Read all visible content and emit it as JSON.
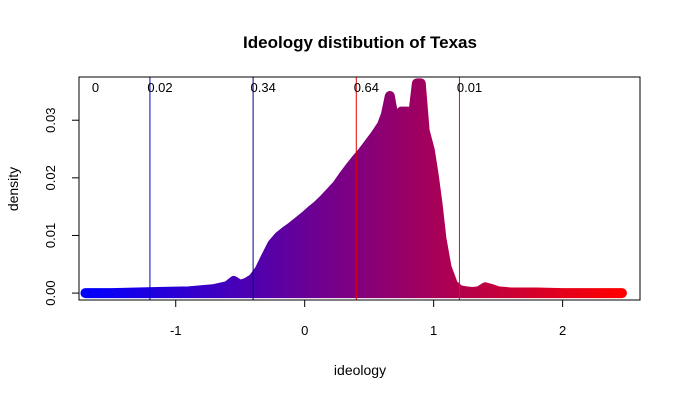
{
  "chart_data": {
    "type": "area",
    "title": "Ideology distibution of Texas",
    "xlabel": "ideology",
    "ylabel": "density",
    "xlim": [
      -1.75,
      2.6
    ],
    "ylim": [
      -0.0012,
      0.0375
    ],
    "x_ticks": [
      -1,
      0,
      1,
      2
    ],
    "x_tick_labels": [
      "-1",
      "0",
      "1",
      "2"
    ],
    "y_ticks": [
      0.0,
      0.01,
      0.02,
      0.03
    ],
    "y_tick_labels": [
      "0.00",
      "0.01",
      "0.02",
      "0.03"
    ],
    "grid": false,
    "gradient_colors": [
      "#0000ff",
      "#ff0000"
    ],
    "cutoff_lines": [
      {
        "x": -1.2,
        "color": "#0000cc"
      },
      {
        "x": -0.4,
        "color": "#00008b"
      },
      {
        "x": 0.4,
        "color": "#e00000"
      },
      {
        "x": 1.2,
        "color": "#ff0000"
      }
    ],
    "annotations": [
      {
        "x": -1.65,
        "text": "0"
      },
      {
        "x": -1.22,
        "text": "0.02"
      },
      {
        "x": -0.42,
        "text": "0.34"
      },
      {
        "x": 0.38,
        "text": "0.64"
      },
      {
        "x": 1.18,
        "text": "0.01"
      }
    ],
    "series": [
      {
        "x": [
          -1.7,
          -1.5,
          -1.3,
          -1.1,
          -0.9,
          -0.7,
          -0.6,
          -0.55,
          -0.5,
          -0.45,
          -0.4,
          -0.35,
          -0.3,
          -0.25,
          -0.2,
          -0.15,
          -0.1,
          -0.05,
          0.0,
          0.05,
          0.1,
          0.15,
          0.2,
          0.25,
          0.3,
          0.35,
          0.4,
          0.45,
          0.5,
          0.55,
          0.6,
          0.63,
          0.66,
          0.7,
          0.75,
          0.8,
          0.83,
          0.87,
          0.9,
          0.93,
          0.97,
          1.0,
          1.03,
          1.06,
          1.1,
          1.15,
          1.2,
          1.25,
          1.3,
          1.35,
          1.4,
          1.45,
          1.5,
          1.6,
          1.8,
          2.0,
          2.2,
          2.46
        ],
        "y": [
          0.0,
          0.0,
          0.0001,
          0.0002,
          0.0003,
          0.0007,
          0.0012,
          0.0021,
          0.0014,
          0.0018,
          0.0025,
          0.004,
          0.0063,
          0.0085,
          0.0098,
          0.0107,
          0.0115,
          0.0124,
          0.0133,
          0.0143,
          0.0152,
          0.0163,
          0.0175,
          0.0187,
          0.0203,
          0.0218,
          0.0232,
          0.0245,
          0.026,
          0.0275,
          0.0292,
          0.031,
          0.0342,
          0.0292,
          0.0315,
          0.0315,
          0.0288,
          0.0364,
          0.0364,
          0.0282,
          0.0248,
          0.0205,
          0.0155,
          0.0095,
          0.0045,
          0.0015,
          0.0005,
          0.0003,
          0.0002,
          0.0003,
          0.001,
          0.0007,
          0.0003,
          0.0001,
          0.0001,
          0.0,
          0.0,
          0.0
        ]
      }
    ]
  }
}
